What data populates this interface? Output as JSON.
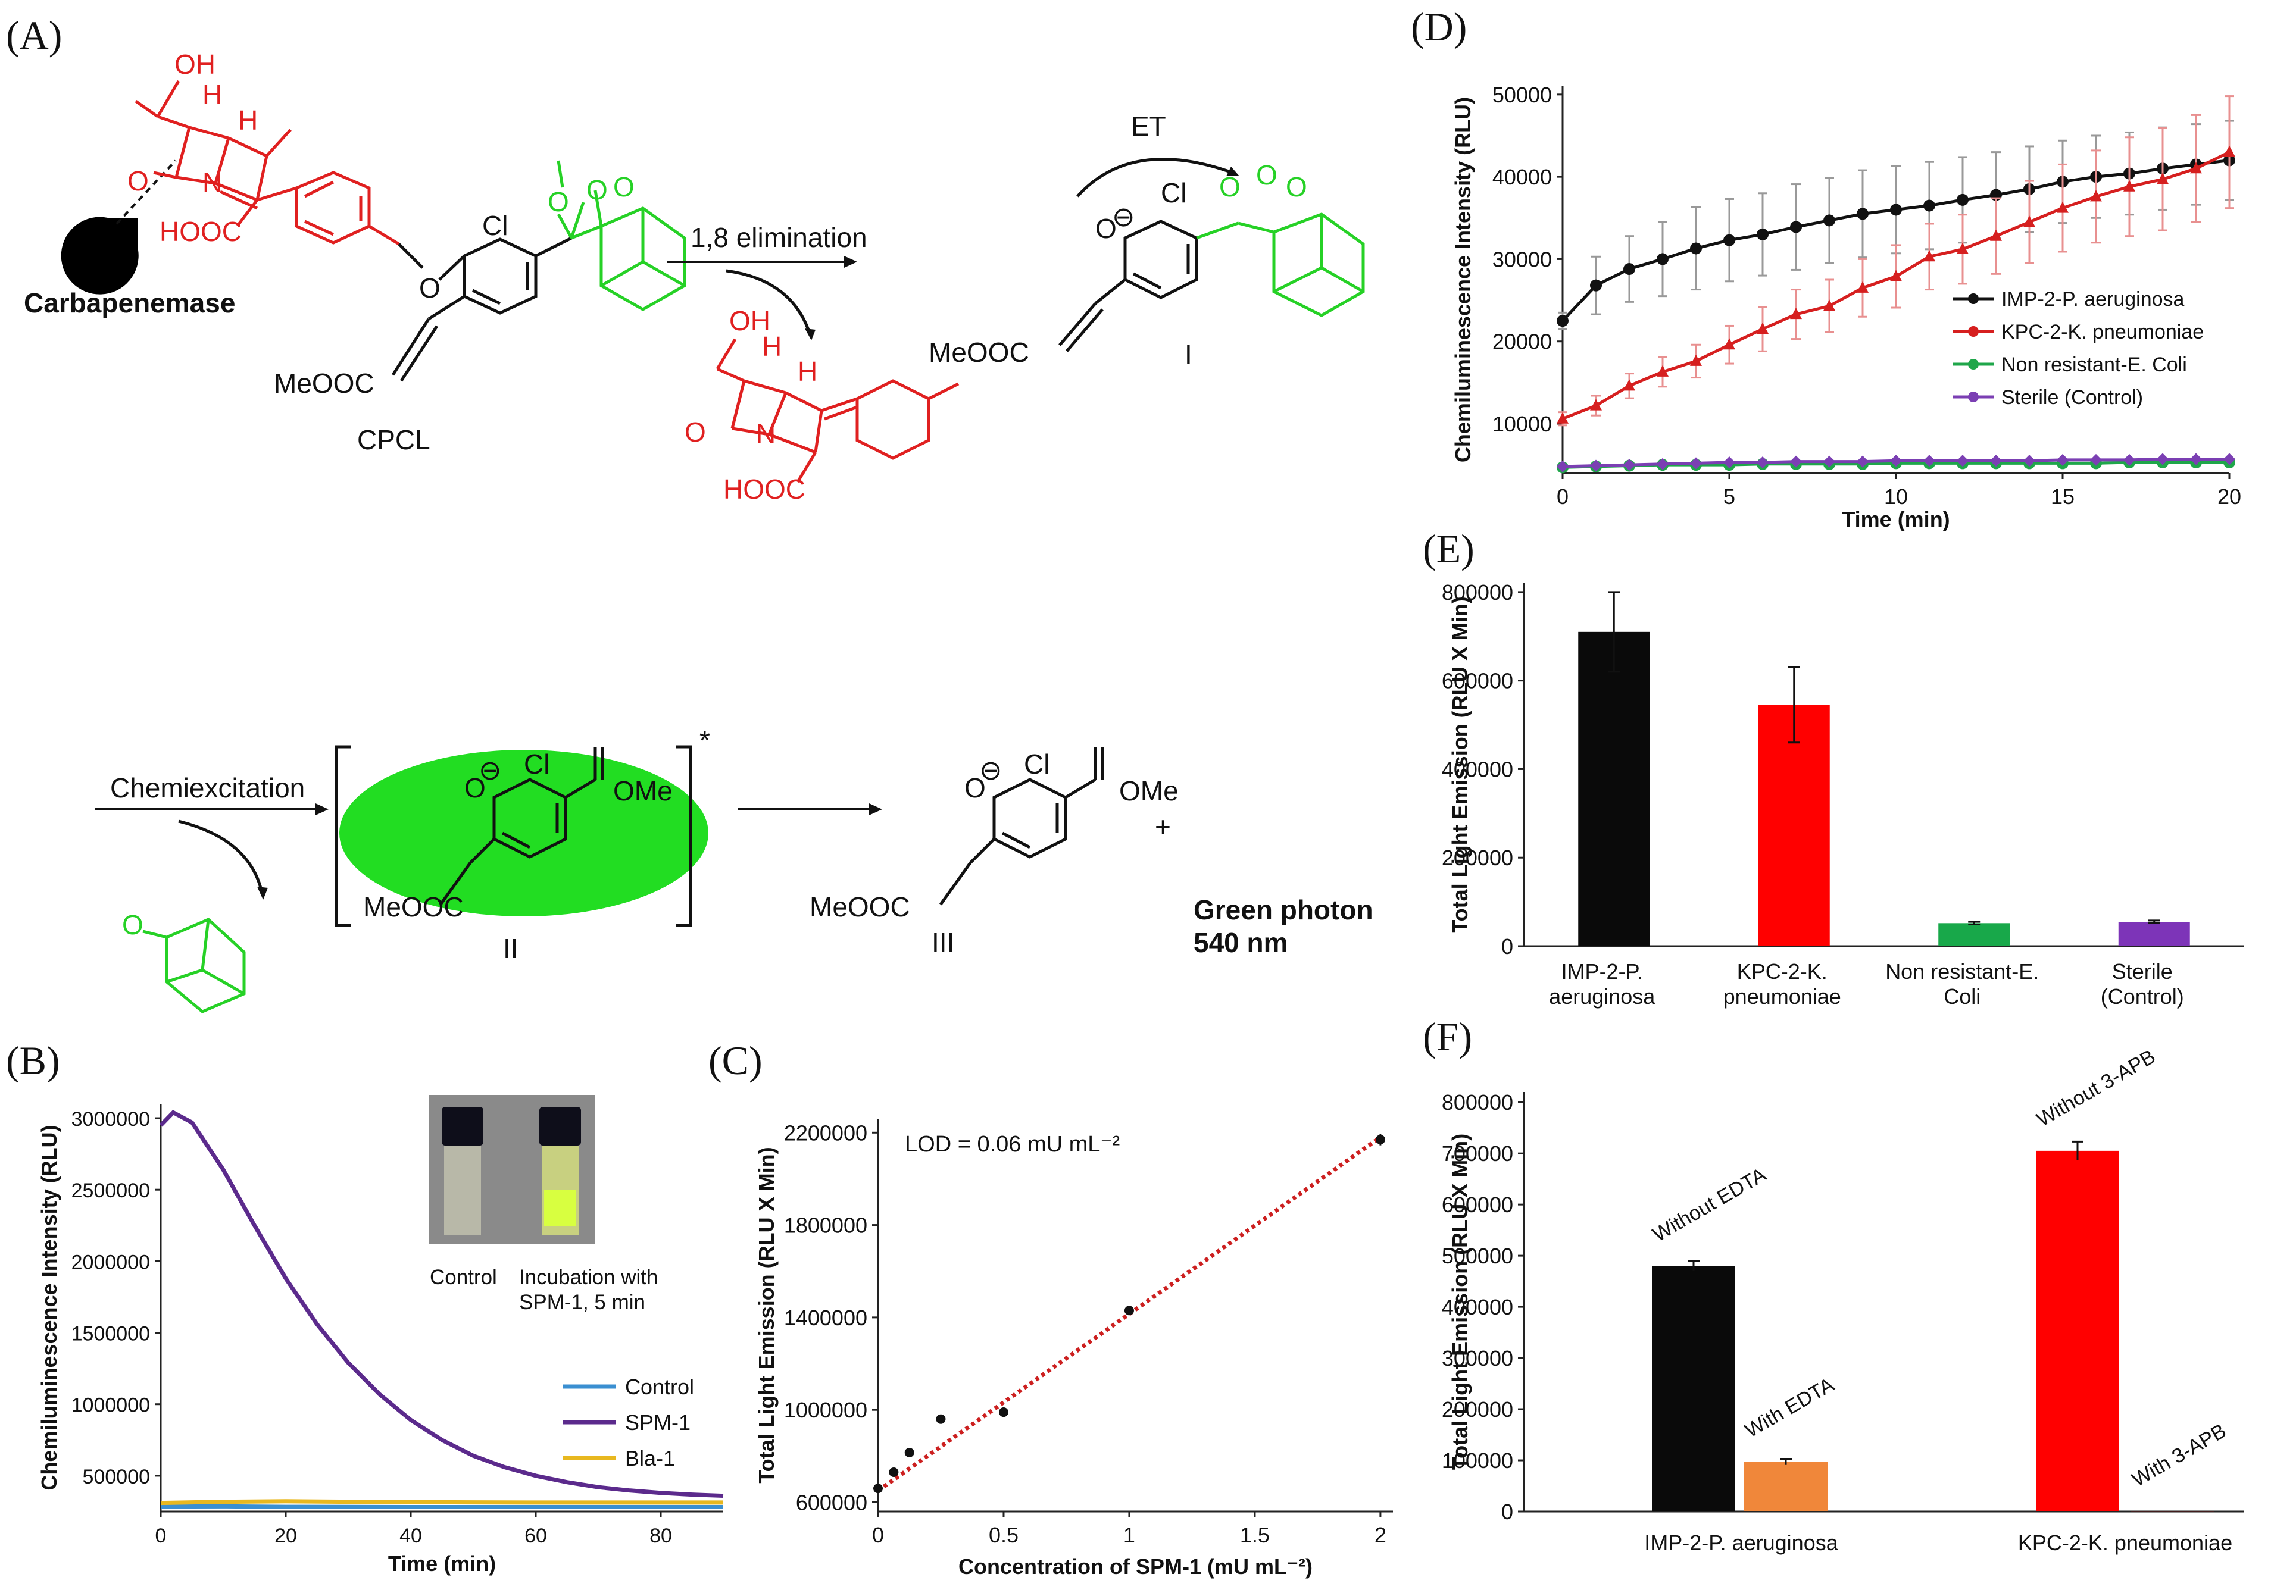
{
  "panels": {
    "A": "(A)",
    "B": "(B)",
    "C": "(C)",
    "D": "(D)",
    "E": "(E)",
    "F": "(F)"
  },
  "scheme": {
    "enzyme": "Carbapenemase",
    "probe": "CPCL",
    "step1": "1,8 elimination",
    "et": "ET",
    "intermediate1": "I",
    "step2": "Chemiexcitation",
    "intermediate2": "II",
    "star": "*",
    "product3": "III",
    "plus": "+",
    "photon_line1": "Green photon",
    "photon_line2": "540 nm",
    "atoms": {
      "oh": "OH",
      "h": "H",
      "o": "O",
      "n": "N",
      "hooc": "HOOC",
      "cl": "Cl",
      "meooc": "MeOOC",
      "ome": "OMe",
      "minus": "⊖"
    }
  },
  "inset": {
    "control": "Control",
    "incubation_line1": "Incubation with",
    "incubation_line2": "SPM-1, 5 min"
  },
  "chart_data": [
    {
      "id": "B",
      "type": "line",
      "xlabel": "Time (min)",
      "ylabel": "Chemiluminescence Intensity (RLU)",
      "xlim": [
        0,
        90
      ],
      "ylim": [
        250000,
        3100000
      ],
      "xticks": [
        0,
        20,
        40,
        60,
        80
      ],
      "yticks": [
        500000,
        1000000,
        1500000,
        2000000,
        2500000,
        3000000
      ],
      "ytick_labels": [
        "500000",
        "1000000",
        "1500000",
        "2000000",
        "2500000",
        "3000000"
      ],
      "series": [
        {
          "name": "Control",
          "color": "#3a8fd1",
          "x": [
            0,
            10,
            20,
            30,
            40,
            50,
            60,
            70,
            80,
            90
          ],
          "y": [
            285000,
            286000,
            283000,
            282000,
            281000,
            281000,
            281000,
            281000,
            281000,
            281000
          ]
        },
        {
          "name": "SPM-1",
          "color": "#5b2a8c",
          "x": [
            0,
            2,
            5,
            10,
            15,
            20,
            25,
            30,
            35,
            40,
            45,
            50,
            55,
            60,
            65,
            70,
            75,
            80,
            85,
            90
          ],
          "y": [
            2950000,
            3040000,
            2970000,
            2640000,
            2250000,
            1880000,
            1560000,
            1290000,
            1070000,
            890000,
            750000,
            640000,
            560000,
            500000,
            455000,
            420000,
            397000,
            380000,
            368000,
            360000
          ]
        },
        {
          "name": "Bla-1",
          "color": "#e8b820",
          "x": [
            0,
            10,
            20,
            30,
            40,
            50,
            60,
            70,
            80,
            90
          ],
          "y": [
            310000,
            318000,
            322000,
            318000,
            315000,
            314000,
            313000,
            313000,
            313000,
            313000
          ]
        }
      ]
    },
    {
      "id": "C",
      "type": "scatter",
      "xlabel": "Concentration of SPM-1 (mU mL⁻²)",
      "ylabel": "Total Light Emission (RLU X Min)",
      "annotation": "LOD = 0.06 mU mL⁻²",
      "xlim": [
        0,
        2.05
      ],
      "ylim": [
        560000,
        2260000
      ],
      "xticks": [
        0,
        0.5,
        1,
        1.5,
        2
      ],
      "yticks": [
        600000,
        1000000,
        1400000,
        1800000,
        2200000
      ],
      "ytick_labels": [
        "600000",
        "1000000",
        "1400000",
        "1800000",
        "2200000"
      ],
      "points": {
        "x": [
          0,
          0.0625,
          0.125,
          0.25,
          0.5,
          1,
          2
        ],
        "y": [
          660000,
          730000,
          815000,
          960000,
          990000,
          1430000,
          2170000
        ],
        "err": [
          8000,
          10000,
          12000,
          16000,
          15000,
          10000,
          25000
        ]
      },
      "fit": {
        "x": [
          0,
          2
        ],
        "y": [
          650000,
          2180000
        ],
        "color": "#cc1f1f"
      }
    },
    {
      "id": "D",
      "type": "line",
      "xlabel": "Time (min)",
      "ylabel": "Chemiluminescence Intensity (RLU)",
      "xlim": [
        0,
        20
      ],
      "ylim": [
        4000,
        51000
      ],
      "xticks": [
        0,
        5,
        10,
        15,
        20
      ],
      "yticks": [
        10000,
        20000,
        30000,
        40000,
        50000
      ],
      "ytick_labels": [
        "10000",
        "20000",
        "30000",
        "40000",
        "50000"
      ],
      "x": [
        0,
        1,
        2,
        3,
        4,
        5,
        6,
        7,
        8,
        9,
        10,
        11,
        12,
        13,
        14,
        15,
        16,
        17,
        18,
        19,
        20
      ],
      "series": [
        {
          "name": "IMP-2-P. aeruginosa",
          "color": "#111111",
          "marker": "circle",
          "values": [
            22500,
            26800,
            28800,
            30000,
            31300,
            32300,
            33000,
            33900,
            34700,
            35500,
            36000,
            36500,
            37200,
            37800,
            38500,
            39400,
            40000,
            40400,
            41000,
            41500,
            42000
          ],
          "err": [
            1000,
            3500,
            4000,
            4500,
            5000,
            5000,
            5000,
            5200,
            5200,
            5300,
            5300,
            5300,
            5200,
            5200,
            5200,
            5000,
            5000,
            5000,
            5000,
            4900,
            4800
          ]
        },
        {
          "name": "KPC-2-K. pneumoniae",
          "color": "#d61f1f",
          "marker": "triangle",
          "values": [
            10600,
            12200,
            14600,
            16300,
            17600,
            19600,
            21500,
            23300,
            24300,
            26500,
            27900,
            30300,
            31200,
            32800,
            34500,
            36200,
            37600,
            38800,
            39700,
            41000,
            43000
          ],
          "err": [
            800,
            1200,
            1500,
            1800,
            2000,
            2300,
            2700,
            3000,
            3200,
            3500,
            3800,
            4000,
            4200,
            4600,
            5000,
            5300,
            5600,
            6000,
            6200,
            6500,
            6800
          ]
        },
        {
          "name": "Non resistant-E. Coli",
          "color": "#1fa64a",
          "marker": "circle",
          "values": [
            4700,
            4800,
            4900,
            5000,
            5000,
            5000,
            5100,
            5100,
            5100,
            5100,
            5200,
            5200,
            5200,
            5200,
            5200,
            5200,
            5200,
            5300,
            5300,
            5300,
            5300
          ],
          "err": []
        },
        {
          "name": "Sterile (Control)",
          "color": "#7b3fb3",
          "marker": "diamond",
          "values": [
            4800,
            4900,
            5000,
            5100,
            5200,
            5300,
            5300,
            5400,
            5400,
            5400,
            5500,
            5500,
            5500,
            5500,
            5500,
            5600,
            5600,
            5600,
            5700,
            5700,
            5700
          ],
          "err": []
        }
      ]
    },
    {
      "id": "E",
      "type": "bar",
      "ylabel": "Total Light Emission (RLU X Min)",
      "ylim": [
        0,
        820000
      ],
      "yticks": [
        0,
        200000,
        400000,
        600000,
        800000
      ],
      "ytick_labels": [
        "0",
        "200000",
        "400000",
        "600000",
        "800000"
      ],
      "categories": [
        "IMP-2-P.|aeruginosa",
        "KPC-2-K.|pneumoniae",
        "Non resistant-E.|Coli",
        "Sterile|(Control)"
      ],
      "values": [
        710000,
        545000,
        52000,
        55000
      ],
      "err": [
        90000,
        85000,
        3000,
        3000
      ],
      "colors": [
        "#0a0a0a",
        "#ff0000",
        "#18a84a",
        "#7d34b8"
      ]
    },
    {
      "id": "F",
      "type": "bar",
      "ylabel": "Total Light Emission (RLU X Min)",
      "ylim": [
        0,
        820000
      ],
      "yticks": [
        0,
        100000,
        200000,
        300000,
        400000,
        500000,
        600000,
        700000,
        800000
      ],
      "ytick_labels": [
        "0",
        "100000",
        "200000",
        "300000",
        "400000",
        "500000",
        "600000",
        "700000",
        "800000"
      ],
      "groups": [
        "IMP-2-P. aeruginosa",
        "KPC-2-K. pneumoniae"
      ],
      "bars": [
        {
          "group": 0,
          "label": "Without EDTA",
          "value": 480000,
          "err": 10000,
          "color": "#0a0a0a"
        },
        {
          "group": 0,
          "label": "With EDTA",
          "value": 97000,
          "err": 6000,
          "color": "#f0873a"
        },
        {
          "group": 1,
          "label": "Without 3-APB",
          "value": 705000,
          "err": 18000,
          "color": "#ff0000"
        },
        {
          "group": 1,
          "label": "With 3-APB",
          "value": 1000,
          "err": 0,
          "color": "#ff0000"
        }
      ]
    }
  ]
}
